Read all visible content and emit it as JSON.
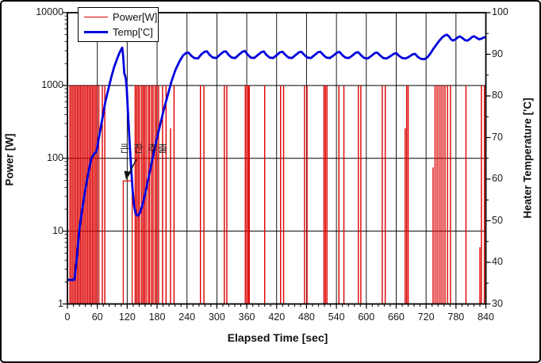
{
  "chart_data": {
    "type": "line",
    "title": "",
    "x_axis": {
      "label": "Elapsed Time [sec]",
      "min": 0,
      "max": 840,
      "major_ticks": [
        0,
        60,
        120,
        180,
        240,
        300,
        360,
        420,
        480,
        540,
        600,
        660,
        720,
        780,
        840
      ],
      "minor_step": 12,
      "grid": true
    },
    "y_left": {
      "label": "Power [W]",
      "scale": "log",
      "min": 1,
      "max": 10000,
      "major_ticks": [
        1,
        10,
        100,
        1000,
        10000
      ],
      "tick_labels": [
        "1",
        "10",
        "100",
        "1000",
        "10000"
      ],
      "grid": true
    },
    "y_right": {
      "label": "Heater Temperature ['C]",
      "min": 30,
      "max": 100,
      "major_ticks": [
        30,
        40,
        50,
        60,
        70,
        80,
        90,
        100
      ],
      "minor_step": 5,
      "grid": false
    },
    "legend": [
      {
        "label": "Power[W]",
        "color": "#dd0000",
        "style": "thin-line"
      },
      {
        "label": "Temp['C]",
        "color": "#0000dd",
        "style": "thick-line"
      }
    ],
    "annotation": {
      "text": "큰 잔 추출",
      "arrow_target_sec": 121,
      "arrow_target_watt": 49
    },
    "colors": {
      "power": "#dd0000",
      "temp": "#0000dd",
      "grid": "#000000",
      "frame": "#000000",
      "background": "#ffffff"
    },
    "power_pulses_t_w": [
      [
        5,
        1000
      ],
      [
        8,
        1000
      ],
      [
        11,
        1000
      ],
      [
        14,
        1000
      ],
      [
        17,
        1000
      ],
      [
        20,
        1000
      ],
      [
        23,
        1000
      ],
      [
        26,
        1000
      ],
      [
        29,
        1000
      ],
      [
        32,
        1000
      ],
      [
        35,
        1000
      ],
      [
        38,
        1000
      ],
      [
        41,
        1000
      ],
      [
        44,
        1000
      ],
      [
        47,
        1000
      ],
      [
        50,
        1000
      ],
      [
        53,
        1000
      ],
      [
        56,
        1000
      ],
      [
        59,
        1000
      ],
      [
        63,
        1000
      ],
      [
        70,
        1000
      ],
      [
        75,
        1000
      ],
      [
        136,
        1000
      ],
      [
        139,
        1000
      ],
      [
        142,
        1000
      ],
      [
        145,
        1000
      ],
      [
        149,
        1000
      ],
      [
        152,
        1000
      ],
      [
        155,
        1000
      ],
      [
        158,
        1000
      ],
      [
        162,
        1000
      ],
      [
        165,
        1000
      ],
      [
        169,
        1000
      ],
      [
        172,
        1000
      ],
      [
        176,
        1000
      ],
      [
        179,
        1000
      ],
      [
        183,
        1000
      ],
      [
        191,
        1000
      ],
      [
        198,
        1000
      ],
      [
        207,
        258
      ],
      [
        214,
        1000
      ],
      [
        267,
        1000
      ],
      [
        274,
        1000
      ],
      [
        315,
        1000
      ],
      [
        320,
        1000
      ],
      [
        357,
        1000
      ],
      [
        360,
        1000
      ],
      [
        363,
        1000
      ],
      [
        365,
        1000
      ],
      [
        396,
        1000
      ],
      [
        428,
        1000
      ],
      [
        434,
        1000
      ],
      [
        476,
        1000
      ],
      [
        481,
        1000
      ],
      [
        515,
        1000
      ],
      [
        518,
        1000
      ],
      [
        521,
        1000
      ],
      [
        545,
        1000
      ],
      [
        555,
        1000
      ],
      [
        584,
        1000
      ],
      [
        589,
        1000
      ],
      [
        632,
        1000
      ],
      [
        638,
        1000
      ],
      [
        678,
        258
      ],
      [
        681,
        1000
      ],
      [
        684,
        1000
      ],
      [
        734,
        75
      ],
      [
        738,
        1000
      ],
      [
        742,
        1000
      ],
      [
        746,
        1000
      ],
      [
        750,
        1000
      ],
      [
        754,
        1000
      ],
      [
        758,
        1000
      ],
      [
        763,
        1000
      ],
      [
        769,
        1000
      ],
      [
        800,
        1000
      ],
      [
        828,
        6
      ],
      [
        831,
        1000
      ],
      [
        837,
        1000
      ]
    ],
    "power_step": {
      "t_start": 112,
      "t_end": 130,
      "watt": 49
    },
    "temp_series_t_c": [
      [
        0,
        35.8
      ],
      [
        14,
        35.8
      ],
      [
        18,
        40
      ],
      [
        24,
        48
      ],
      [
        30,
        53
      ],
      [
        36,
        57.5
      ],
      [
        42,
        61.5
      ],
      [
        48,
        65
      ],
      [
        54,
        66.2
      ],
      [
        58,
        66.5
      ],
      [
        64,
        70.5
      ],
      [
        70,
        74.5
      ],
      [
        76,
        78.5
      ],
      [
        82,
        81.5
      ],
      [
        88,
        84.5
      ],
      [
        94,
        87
      ],
      [
        100,
        89
      ],
      [
        105,
        90.5
      ],
      [
        110,
        91.6
      ],
      [
        112,
        89.5
      ],
      [
        114,
        85.5
      ],
      [
        117,
        84.3
      ],
      [
        119,
        82
      ],
      [
        122,
        75
      ],
      [
        125,
        68.5
      ],
      [
        128,
        62.5
      ],
      [
        131,
        57
      ],
      [
        134,
        53.5
      ],
      [
        137,
        51.7
      ],
      [
        141,
        51.2
      ],
      [
        145,
        51.8
      ],
      [
        150,
        53.5
      ],
      [
        156,
        56.5
      ],
      [
        163,
        60.5
      ],
      [
        170,
        64.5
      ],
      [
        177,
        68.5
      ],
      [
        185,
        72.5
      ],
      [
        193,
        76.5
      ],
      [
        201,
        80
      ],
      [
        209,
        83.5
      ],
      [
        217,
        86.3
      ],
      [
        225,
        88.3
      ],
      [
        232,
        89.7
      ],
      [
        238,
        90.3
      ],
      [
        243,
        90.4
      ],
      [
        249,
        89.6
      ],
      [
        255,
        89.1
      ],
      [
        262,
        89.0
      ],
      [
        269,
        90.0
      ],
      [
        275,
        90.6
      ],
      [
        280,
        90.7
      ],
      [
        286,
        89.8
      ],
      [
        292,
        89.2
      ],
      [
        299,
        89.1
      ],
      [
        307,
        90.0
      ],
      [
        313,
        90.6
      ],
      [
        318,
        90.7
      ],
      [
        324,
        89.8
      ],
      [
        330,
        89.2
      ],
      [
        337,
        89.1
      ],
      [
        345,
        90.0
      ],
      [
        351,
        90.6
      ],
      [
        356,
        90.8
      ],
      [
        362,
        89.9
      ],
      [
        368,
        89.2
      ],
      [
        375,
        89.1
      ],
      [
        383,
        89.9
      ],
      [
        389,
        90.5
      ],
      [
        394,
        90.7
      ],
      [
        400,
        89.8
      ],
      [
        406,
        89.2
      ],
      [
        413,
        89.1
      ],
      [
        421,
        89.9
      ],
      [
        427,
        90.5
      ],
      [
        432,
        90.6
      ],
      [
        438,
        89.8
      ],
      [
        444,
        89.2
      ],
      [
        451,
        89.1
      ],
      [
        459,
        89.9
      ],
      [
        465,
        90.5
      ],
      [
        470,
        90.6
      ],
      [
        476,
        89.8
      ],
      [
        482,
        89.2
      ],
      [
        489,
        89.1
      ],
      [
        497,
        89.9
      ],
      [
        503,
        90.5
      ],
      [
        508,
        90.6
      ],
      [
        514,
        89.8
      ],
      [
        520,
        89.2
      ],
      [
        527,
        89.1
      ],
      [
        535,
        89.8
      ],
      [
        541,
        90.4
      ],
      [
        546,
        90.6
      ],
      [
        552,
        89.8
      ],
      [
        558,
        89.2
      ],
      [
        565,
        89.1
      ],
      [
        573,
        89.8
      ],
      [
        579,
        90.4
      ],
      [
        584,
        90.5
      ],
      [
        590,
        89.7
      ],
      [
        596,
        89.1
      ],
      [
        603,
        89.0
      ],
      [
        611,
        89.7
      ],
      [
        617,
        90.3
      ],
      [
        622,
        90.4
      ],
      [
        628,
        89.7
      ],
      [
        634,
        89.1
      ],
      [
        641,
        89.0
      ],
      [
        649,
        89.6
      ],
      [
        655,
        90.1
      ],
      [
        660,
        90.3
      ],
      [
        666,
        89.6
      ],
      [
        672,
        89.1
      ],
      [
        679,
        89.0
      ],
      [
        687,
        89.5
      ],
      [
        693,
        90.0
      ],
      [
        698,
        90.1
      ],
      [
        704,
        89.3
      ],
      [
        710,
        88.9
      ],
      [
        716,
        88.8
      ],
      [
        722,
        89.2
      ],
      [
        728,
        90.1
      ],
      [
        734,
        91.2
      ],
      [
        740,
        92.2
      ],
      [
        746,
        93.2
      ],
      [
        752,
        94.0
      ],
      [
        757,
        94.5
      ],
      [
        762,
        94.7
      ],
      [
        766,
        94.3
      ],
      [
        770,
        93.6
      ],
      [
        774,
        93.3
      ],
      [
        779,
        93.6
      ],
      [
        784,
        94.1
      ],
      [
        788,
        94.3
      ],
      [
        793,
        93.9
      ],
      [
        798,
        93.4
      ],
      [
        803,
        93.3
      ],
      [
        808,
        93.7
      ],
      [
        813,
        94.2
      ],
      [
        817,
        94.3
      ],
      [
        822,
        93.9
      ],
      [
        827,
        93.6
      ],
      [
        832,
        93.8
      ],
      [
        836,
        94.1
      ],
      [
        840,
        94.0
      ]
    ]
  }
}
